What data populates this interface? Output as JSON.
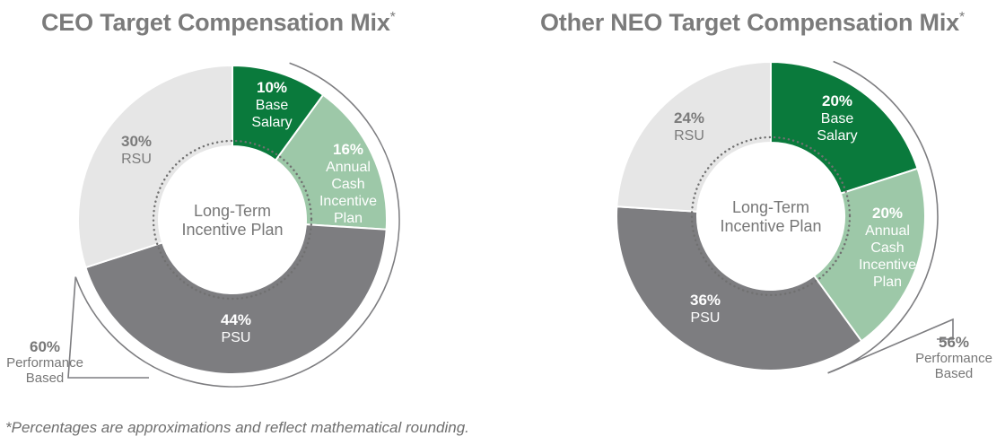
{
  "footnote": "*Percentages are approximations and reflect mathematical rounding.",
  "colors": {
    "base_salary": "#0a7a3c",
    "annual_cash": "#9dc8a8",
    "psu": "#7d7d80",
    "rsu": "#e6e6e6",
    "title": "#7b7b7b",
    "bracket": "#7d7d80"
  },
  "chart_data": [
    {
      "type": "pie",
      "title": "CEO Target Compensation Mix",
      "title_mark": "*",
      "center_label": [
        "Long-Term",
        "Incentive Plan"
      ],
      "slices": [
        {
          "key": "base_salary",
          "value": 10,
          "pct": "10%",
          "label": [
            "Base",
            "Salary"
          ]
        },
        {
          "key": "annual_cash",
          "value": 16,
          "pct": "16%",
          "label": [
            "Annual",
            "Cash",
            "Incentive",
            "Plan"
          ]
        },
        {
          "key": "psu",
          "value": 44,
          "pct": "44%",
          "label": [
            "PSU"
          ]
        },
        {
          "key": "rsu",
          "value": 30,
          "pct": "30%",
          "label": [
            "RSU"
          ]
        }
      ],
      "performance_based": {
        "pct": "60%",
        "label": [
          "Performance",
          "Based"
        ]
      }
    },
    {
      "type": "pie",
      "title": "Other NEO Target Compensation Mix",
      "title_mark": "*",
      "center_label": [
        "Long-Term",
        "Incentive Plan"
      ],
      "slices": [
        {
          "key": "base_salary",
          "value": 20,
          "pct": "20%",
          "label": [
            "Base",
            "Salary"
          ]
        },
        {
          "key": "annual_cash",
          "value": 20,
          "pct": "20%",
          "label": [
            "Annual",
            "Cash",
            "Incentive",
            "Plan"
          ]
        },
        {
          "key": "psu",
          "value": 36,
          "pct": "36%",
          "label": [
            "PSU"
          ]
        },
        {
          "key": "rsu",
          "value": 24,
          "pct": "24%",
          "label": [
            "RSU"
          ]
        }
      ],
      "performance_based": {
        "pct": "56%",
        "label": [
          "Performance",
          "Based"
        ]
      }
    }
  ]
}
